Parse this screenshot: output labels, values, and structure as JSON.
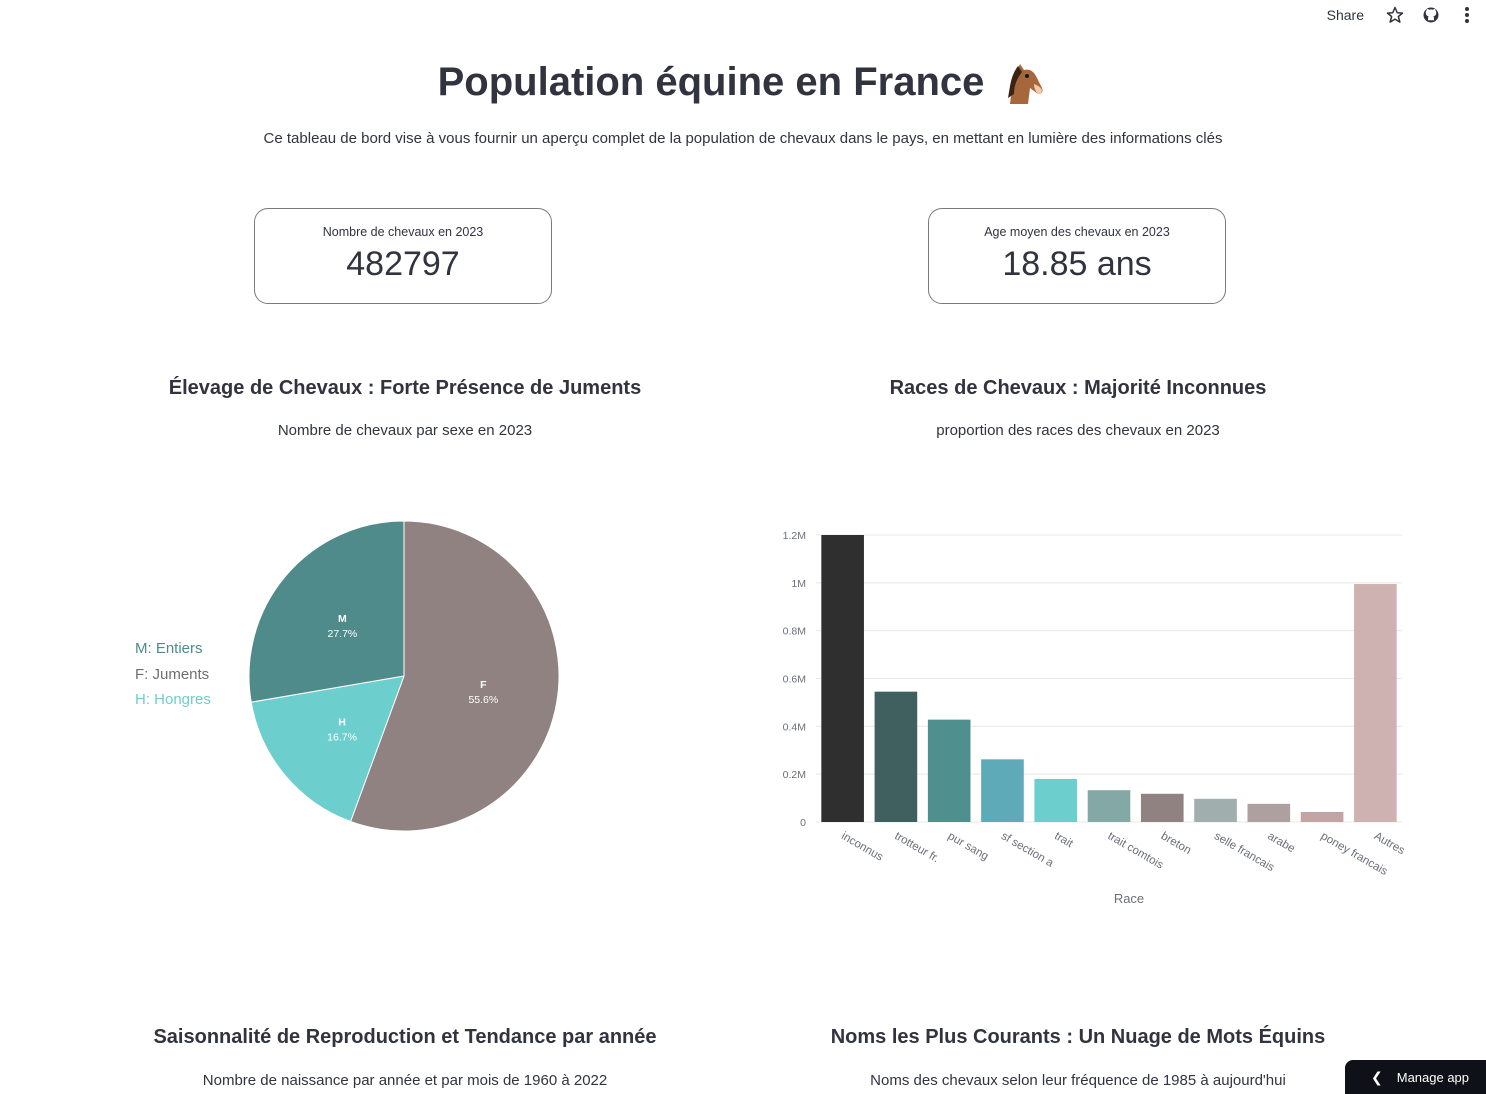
{
  "toolbar": {
    "share_label": "Share"
  },
  "header": {
    "title": "Population équine en France",
    "subtitle": "Ce tableau de bord vise à vous fournir un aperçu complet de la population de chevaux dans le pays, en mettant en lumière des informations clés"
  },
  "metrics": [
    {
      "label": "Nombre de chevaux en 2023",
      "value": "482797"
    },
    {
      "label": "Age moyen des chevaux en 2023",
      "value": "18.85 ans"
    }
  ],
  "sections": {
    "sex": {
      "title": "Élevage de Chevaux : Forte Présence de Juments",
      "subtitle": "Nombre de chevaux par sexe en 2023"
    },
    "breeds": {
      "title": "Races de Chevaux : Majorité Inconnues",
      "subtitle": "proportion des races des chevaux en 2023"
    },
    "seasonality": {
      "title": "Saisonnalité de Reproduction et Tendance par année",
      "subtitle": "Nombre de naissance par année et par mois de 1960 à 2022"
    },
    "names": {
      "title": "Noms les Plus Courants : Un Nuage de Mots Équins",
      "subtitle": "Noms des chevaux selon leur fréquence de 1985 à aujourd'hui"
    }
  },
  "manage_app_label": "Manage app",
  "chart_data": [
    {
      "type": "pie",
      "slices": [
        {
          "label": "F",
          "percent_text": "55.6%",
          "value": 55.6,
          "color": "#8f8280"
        },
        {
          "label": "H",
          "percent_text": "16.7%",
          "value": 16.7,
          "color": "#6ccfcd"
        },
        {
          "label": "M",
          "percent_text": "27.7%",
          "value": 27.7,
          "color": "#4f8b8b"
        }
      ],
      "legend": [
        {
          "text": "M: Entiers",
          "color": "#4f8b8b"
        },
        {
          "text": "F: Juments",
          "color": "#6f6f6f"
        },
        {
          "text": "H: Hongres",
          "color": "#6ccfcd"
        }
      ],
      "legend_position": "left"
    },
    {
      "type": "bar",
      "categories": [
        "inconnus",
        "trotteur fr.",
        "pur sang",
        "sf section a",
        "trait",
        "trait comtois",
        "breton",
        "selle francais",
        "arabe",
        "poney francais",
        "Autres"
      ],
      "values": [
        1200000,
        545000,
        428000,
        262000,
        180000,
        133000,
        118000,
        97000,
        76000,
        42000,
        995000
      ],
      "colors": [
        "#2f2f2f",
        "#3f605e",
        "#4f8f8d",
        "#5eaab8",
        "#6dcfcd",
        "#83a8a6",
        "#8f8280",
        "#a0aeae",
        "#ada09f",
        "#c3a4a4",
        "#ceb2b1"
      ],
      "xlabel": "Race",
      "ylabel": "",
      "ylim": [
        0,
        1200000
      ],
      "yticks": [
        "0",
        "0.2M",
        "0.4M",
        "0.6M",
        "0.8M",
        "1M",
        "1.2M"
      ],
      "grid": true
    }
  ]
}
